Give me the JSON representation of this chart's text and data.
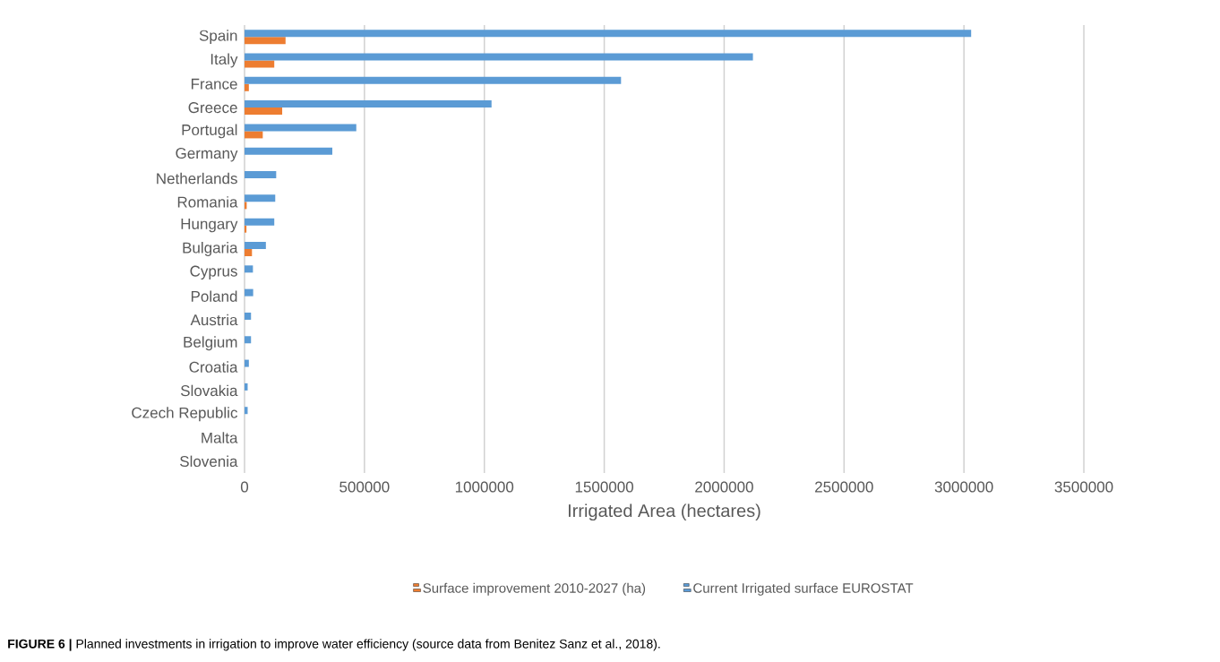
{
  "chart_data": {
    "type": "bar",
    "orientation": "horizontal",
    "xlabel": "Irrigated Area (hectares)",
    "categories": [
      "Spain",
      "Italy",
      "France",
      "Greece",
      "Portugal",
      "Germany",
      "Netherlands",
      "Romania",
      "Hungary",
      "Bulgaria",
      "Cyprus",
      "Poland",
      "Austria",
      "Belgium",
      "Croatia",
      "Slovakia",
      "Czech Republic",
      "Malta",
      "Slovenia"
    ],
    "series": [
      {
        "name": "Surface improvement 2010-2027 (ha)",
        "color": "#ed7d31",
        "values": [
          171000,
          124000,
          18000,
          157000,
          76000,
          0,
          0,
          9000,
          8000,
          31000,
          0,
          0,
          0,
          0,
          0,
          0,
          0,
          0,
          0
        ]
      },
      {
        "name": "Current Irrigated surface EUROSTAT",
        "color": "#5b9bd5",
        "values": [
          3030000,
          2120000,
          1570000,
          1030000,
          466000,
          366000,
          132000,
          128000,
          124000,
          89000,
          35000,
          36000,
          27000,
          27000,
          18000,
          13000,
          13000,
          0,
          0
        ]
      }
    ],
    "xlim": [
      0,
      3500000
    ],
    "xticks": [
      0,
      500000,
      1000000,
      1500000,
      2000000,
      2500000,
      3000000,
      3500000
    ],
    "grid": "x",
    "legend": "bottom",
    "annotations": [
      "**FIGURE 6 |** Planned investments in irrigation to improve water efficiency (source data from Benitez Sanz et al., 2018)."
    ]
  }
}
